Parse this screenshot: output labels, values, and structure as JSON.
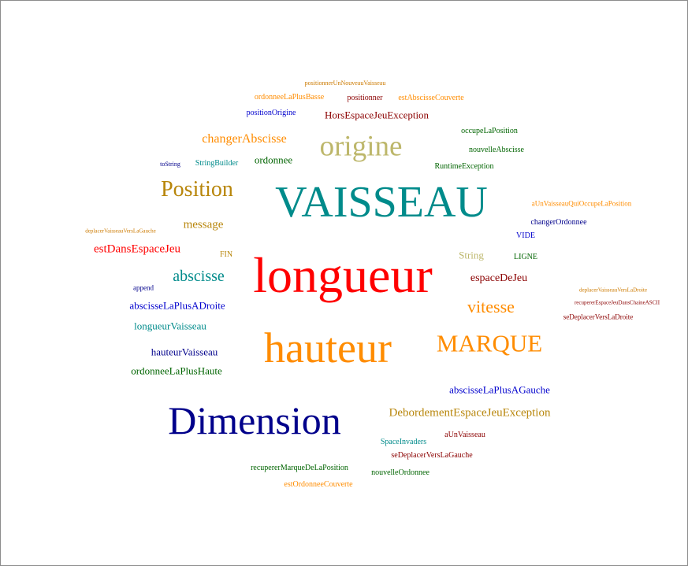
{
  "words": [
    {
      "text": "positionnerUnNouveauVaisseau",
      "color": "#cc7a00"
    },
    {
      "text": "ordonneeLaPlusBasse",
      "color": "#ff8c00"
    },
    {
      "text": "positionner",
      "color": "#8b0000"
    },
    {
      "text": "estAbscisseCouverte",
      "color": "#ff8c00"
    },
    {
      "text": "positionOrigine",
      "color": "#0000cd"
    },
    {
      "text": "HorsEspaceJeuException",
      "color": "#8b0000"
    },
    {
      "text": "occupeLaPosition",
      "color": "#006400"
    },
    {
      "text": "changerAbscisse",
      "color": "#ff8c00"
    },
    {
      "text": "origine",
      "color": "#bdb76b"
    },
    {
      "text": "nouvelleAbscisse",
      "color": "#006400"
    },
    {
      "text": "toString",
      "color": "#00008b"
    },
    {
      "text": "StringBuilder",
      "color": "#008b8b"
    },
    {
      "text": "ordonnee",
      "color": "#006400"
    },
    {
      "text": "RuntimeException",
      "color": "#006400"
    },
    {
      "text": "Position",
      "color": "#b8860b"
    },
    {
      "text": "VAISSEAU",
      "color": "#008b8b"
    },
    {
      "text": "aUnVaisseauQuiOccupeLaPosition",
      "color": "#ff8c00"
    },
    {
      "text": "changerOrdonnee",
      "color": "#00008b"
    },
    {
      "text": "message",
      "color": "#b8860b"
    },
    {
      "text": "deplacerVaisseauVersLaGauche",
      "color": "#cc7a00"
    },
    {
      "text": "VIDE",
      "color": "#0000cd"
    },
    {
      "text": "estDansEspaceJeu",
      "color": "#ff0000"
    },
    {
      "text": "FIN",
      "color": "#b8860b"
    },
    {
      "text": "String",
      "color": "#bdb76b"
    },
    {
      "text": "LIGNE",
      "color": "#006400"
    },
    {
      "text": "abscisse",
      "color": "#008b8b"
    },
    {
      "text": "longueur",
      "color": "#ff0000"
    },
    {
      "text": "espaceDeJeu",
      "color": "#8b0000"
    },
    {
      "text": "append",
      "color": "#00008b"
    },
    {
      "text": "deplacerVaisseauVersLaDroite",
      "color": "#cc7a00"
    },
    {
      "text": "recupererEspaceJeuDansChaineASCII",
      "color": "#8b0000"
    },
    {
      "text": "vitesse",
      "color": "#ff8c00"
    },
    {
      "text": "abscisseLaPlusADroite",
      "color": "#0000cd"
    },
    {
      "text": "seDeplacerVersLaDroite",
      "color": "#8b0000"
    },
    {
      "text": "longueurVaisseau",
      "color": "#008b8b"
    },
    {
      "text": "hauteur",
      "color": "#ff8c00"
    },
    {
      "text": "MARQUE",
      "color": "#ff8c00"
    },
    {
      "text": "hauteurVaisseau",
      "color": "#00008b"
    },
    {
      "text": "ordonneeLaPlusHaute",
      "color": "#006400"
    },
    {
      "text": "abscisseLaPlusAGauche",
      "color": "#0000cd"
    },
    {
      "text": "Dimension",
      "color": "#00008b"
    },
    {
      "text": "DebordementEspaceJeuException",
      "color": "#b8860b"
    },
    {
      "text": "aUnVaisseau",
      "color": "#8b0000"
    },
    {
      "text": "SpaceInvaders",
      "color": "#008b8b"
    },
    {
      "text": "seDeplacerVersLaGauche",
      "color": "#8b0000"
    },
    {
      "text": "recupererMarqueDeLaPosition",
      "color": "#006400"
    },
    {
      "text": "nouvelleOrdonnee",
      "color": "#006400"
    },
    {
      "text": "estOrdonneeCouverte",
      "color": "#ff8c00"
    }
  ]
}
